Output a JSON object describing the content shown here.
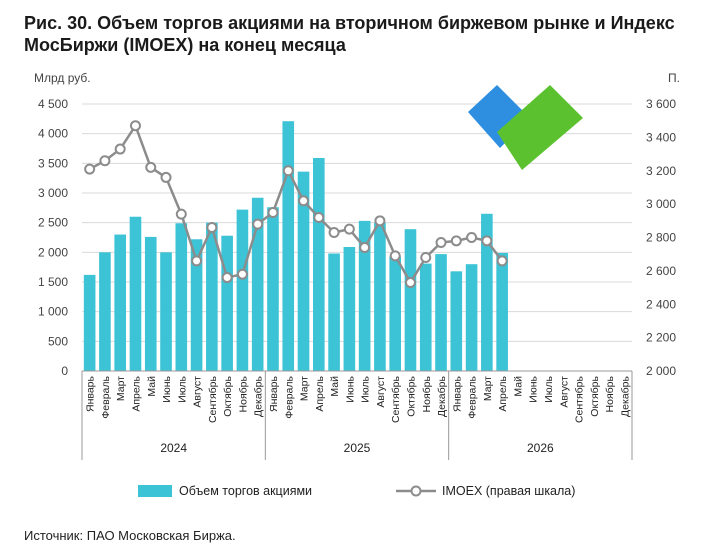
{
  "title": "Рис. 30. Объем торгов акциями на вторичном биржевом рынке и Индекс МосБиржи (IMOEX) на конец месяца",
  "source": "Источник: ПАО Московская Биржа.",
  "colors": {
    "bars": "#3CC3D6",
    "line": "#8C8C8C",
    "marker_fill": "#FFFFFF",
    "grid": "#D9D9D9",
    "logo_blue": "#2E8FE0",
    "logo_green": "#5CC12E"
  },
  "logo": {
    "icon": "moex-check-logo-icon"
  },
  "chart_data": {
    "type": "bar+line",
    "y_left_label": "Млрд руб.",
    "y_right_label": "П.",
    "ylim_left": [
      0,
      4500
    ],
    "ylim_right": [
      2000,
      3600
    ],
    "y_left_ticks": [
      "0",
      "500",
      "1 000",
      "1 500",
      "2 000",
      "2 500",
      "3 000",
      "3 500",
      "4 000",
      "4 500"
    ],
    "y_right_ticks": [
      "2 000",
      "2 200",
      "2 400",
      "2 600",
      "2 800",
      "3 000",
      "3 200",
      "3 400",
      "3 600"
    ],
    "grid": true,
    "categories": [
      "Январь",
      "Февраль",
      "Март",
      "Апрель",
      "Май",
      "Июнь",
      "Июль",
      "Август",
      "Сентябрь",
      "Октябрь",
      "Ноябрь",
      "Декабрь",
      "Январь",
      "Февраль",
      "Март",
      "Апрель",
      "Май",
      "Июнь",
      "Июль",
      "Август",
      "Сентябрь",
      "Октябрь",
      "Ноябрь",
      "Декабрь",
      "Январь",
      "Февраль",
      "Март",
      "Апрель",
      "Май",
      "Июнь",
      "Июль",
      "Август",
      "Сентябрь",
      "Октябрь",
      "Ноябрь",
      "Декабрь"
    ],
    "year_groups": [
      {
        "label": "2024",
        "span": 12
      },
      {
        "label": "2025",
        "span": 12
      },
      {
        "label": "2026",
        "span": 12
      }
    ],
    "series": [
      {
        "name": "Объем торгов акциями",
        "type": "bar",
        "axis": "left",
        "values": [
          1620,
          2000,
          2300,
          2600,
          2260,
          2000,
          2490,
          2220,
          2500,
          2280,
          2720,
          2920,
          2760,
          4210,
          3360,
          3590,
          1980,
          2090,
          2530,
          2500,
          1930,
          2390,
          1810,
          1970,
          1680,
          1800,
          2650,
          1990,
          null,
          null,
          null,
          null,
          null,
          null,
          null,
          null
        ]
      },
      {
        "name": "IMOEX (правая шкала)",
        "type": "line",
        "axis": "right",
        "values": [
          3210,
          3260,
          3330,
          3470,
          3220,
          3160,
          2940,
          2660,
          2860,
          2560,
          2580,
          2880,
          2950,
          3200,
          3020,
          2920,
          2830,
          2850,
          2740,
          2900,
          2690,
          2530,
          2680,
          2770,
          2780,
          2800,
          2780,
          2660,
          null,
          null,
          null,
          null,
          null,
          null,
          null,
          null
        ]
      }
    ],
    "legend": {
      "position": "bottom"
    }
  }
}
